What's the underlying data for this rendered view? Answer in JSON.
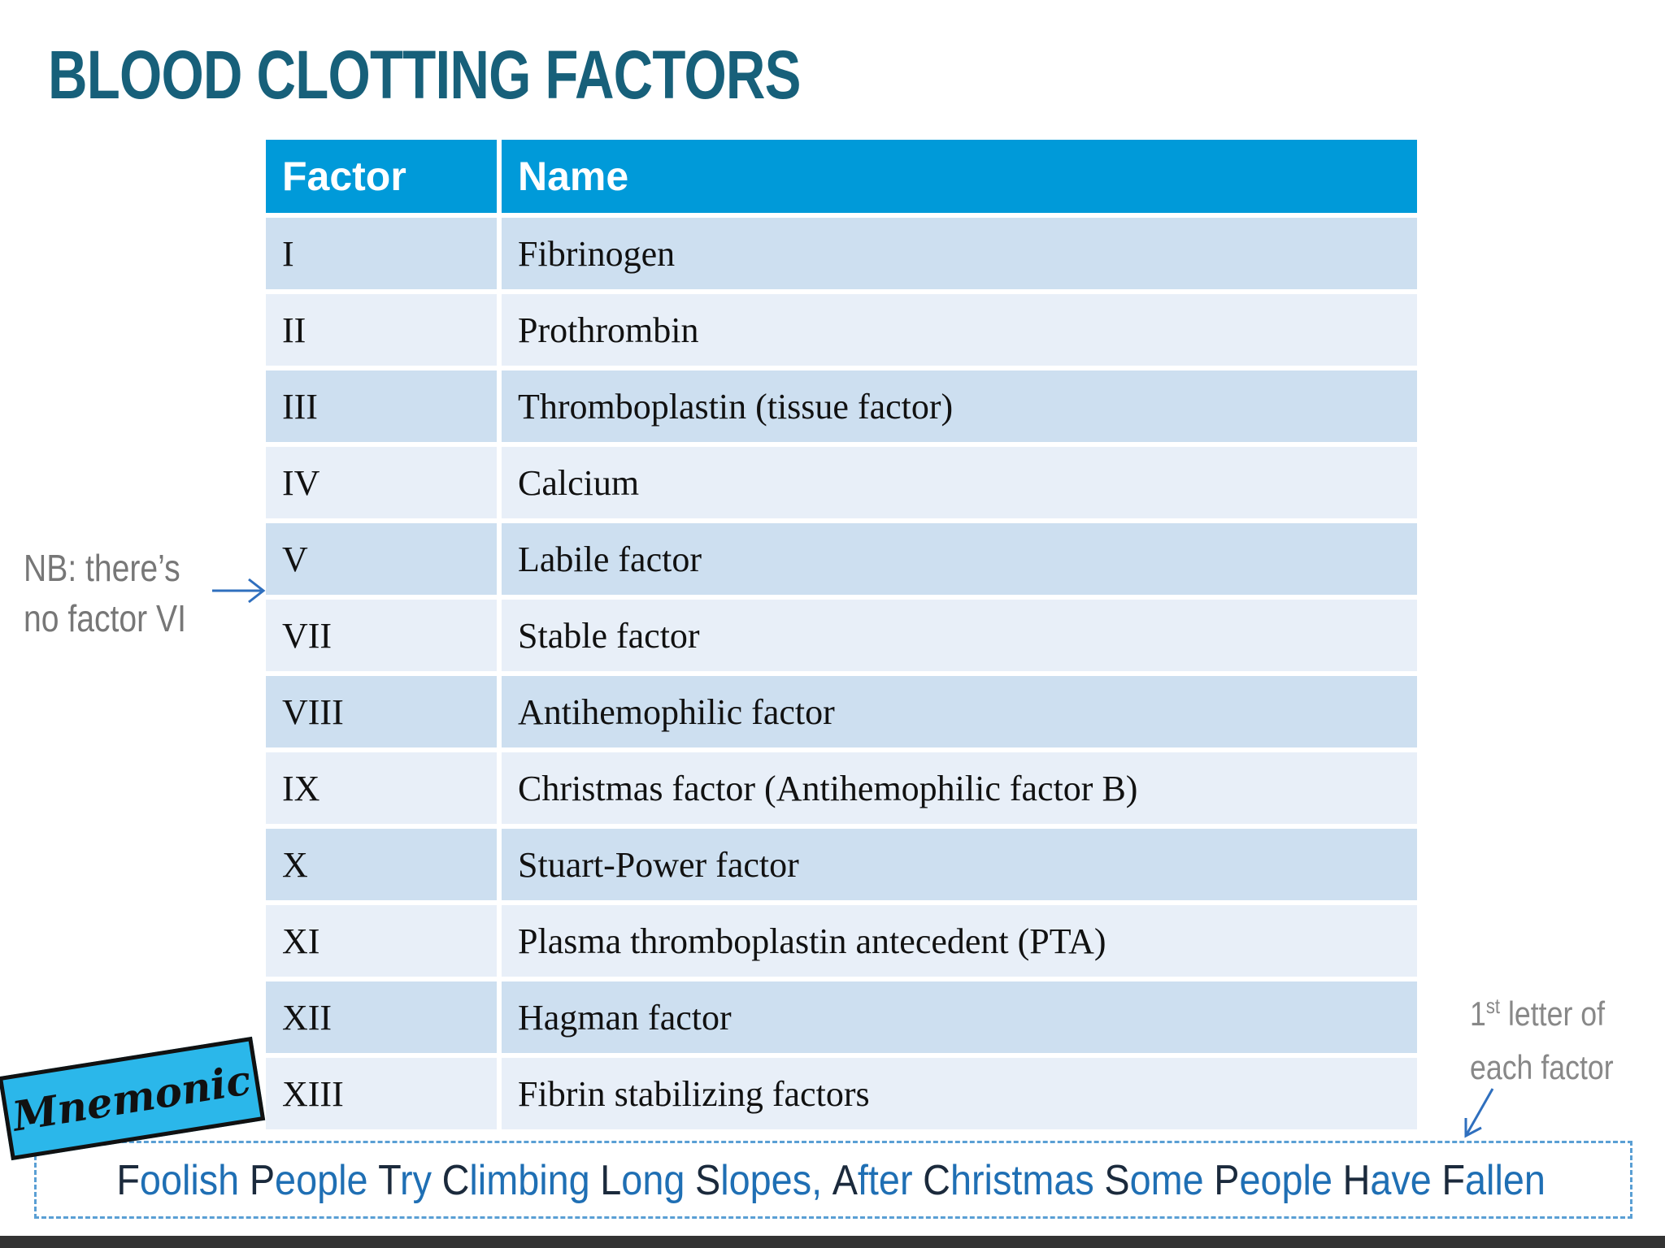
{
  "header": {
    "title": "BLOOD CLOTTING FACTORS"
  },
  "table": {
    "columns": [
      "Factor",
      "Name"
    ],
    "rows": [
      [
        "I",
        "Fibrinogen"
      ],
      [
        "II",
        "Prothrombin"
      ],
      [
        "III",
        "Thromboplastin (tissue factor)"
      ],
      [
        "IV",
        "Calcium"
      ],
      [
        "V",
        "Labile factor"
      ],
      [
        "VII",
        "Stable factor"
      ],
      [
        "VIII",
        "Antihemophilic factor"
      ],
      [
        "IX",
        "Christmas factor (Antihemophilic factor B)"
      ],
      [
        "X",
        "Stuart-Power factor"
      ],
      [
        "XI",
        "Plasma thromboplastin antecedent (PTA)"
      ],
      [
        "XII",
        "Hagman factor"
      ],
      [
        "XIII",
        "Fibrin stabilizing factors"
      ]
    ]
  },
  "side_note": "NB: there’s no factor VI",
  "letter_note": {
    "number": "1",
    "suffix": "st",
    "text": "letter of each factor"
  },
  "mnemonic": {
    "tag": "Mnemonic",
    "words": [
      "Foolish",
      "People",
      "Try",
      "Climbing",
      "Long",
      "Slopes,",
      "After",
      "Christmas",
      "Some",
      "People",
      "Have",
      "Fallen"
    ]
  }
}
